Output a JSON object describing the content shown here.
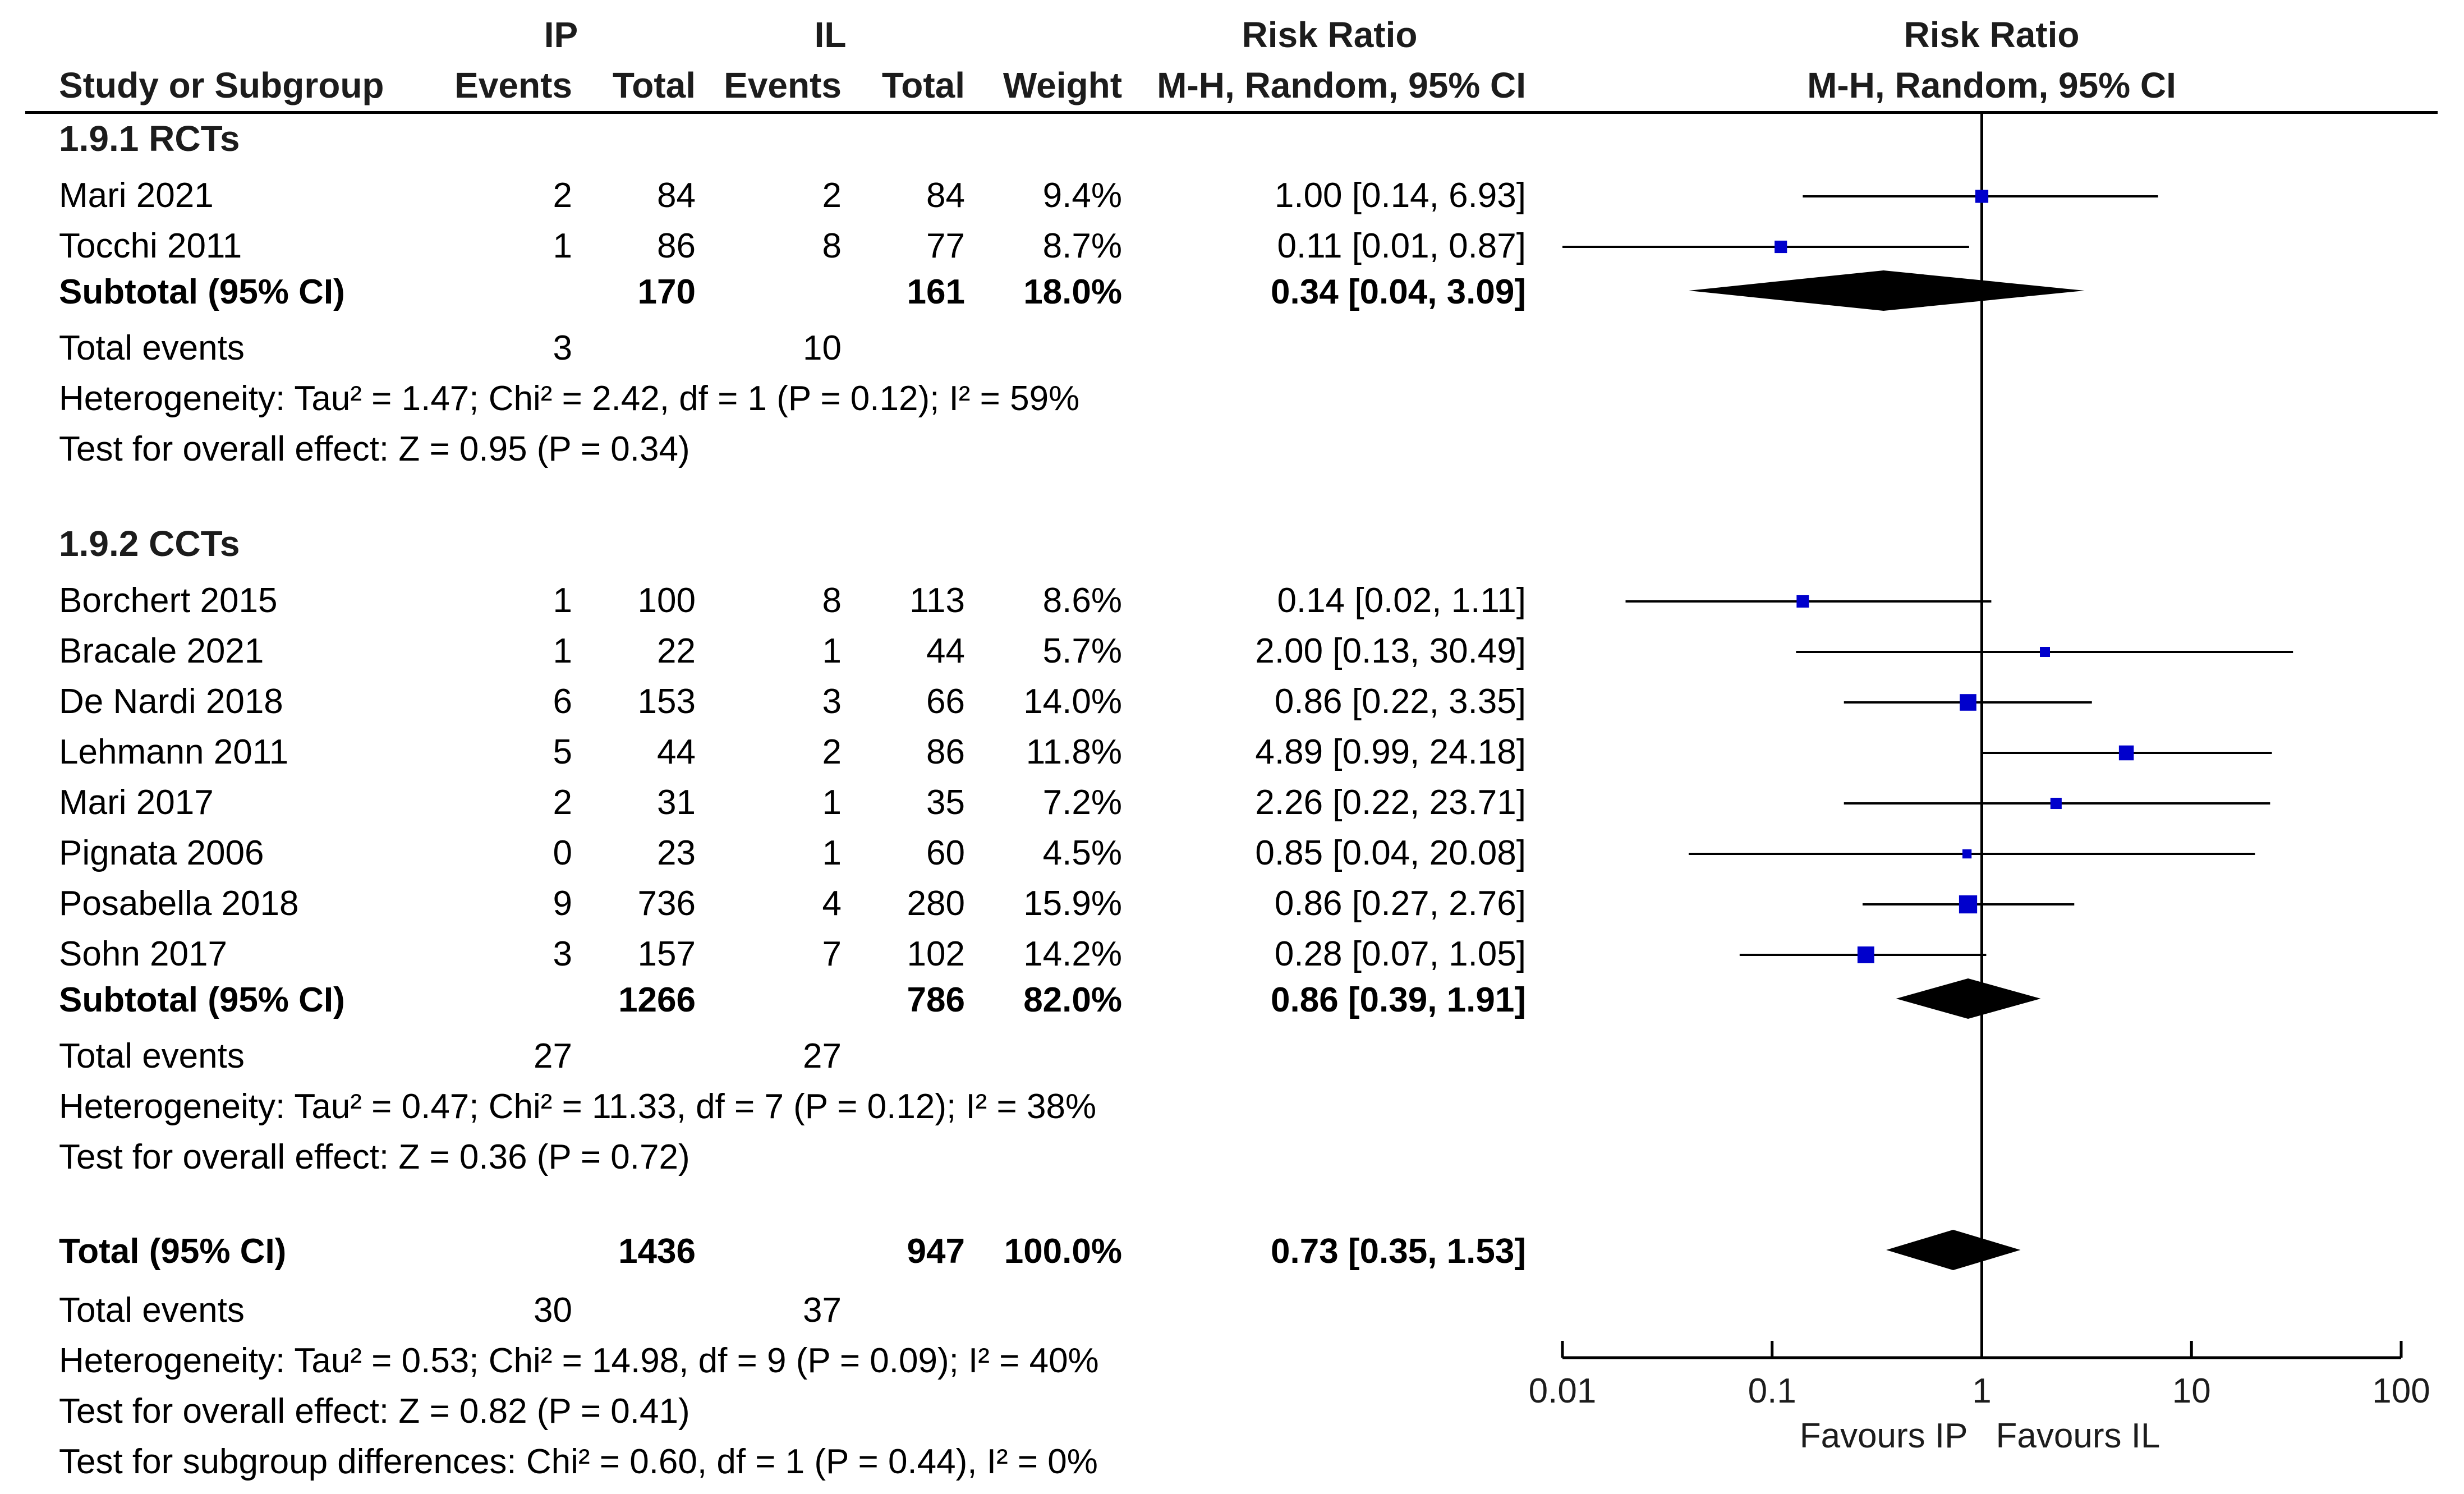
{
  "chart_data": {
    "type": "forest",
    "header": {
      "group1": "IP",
      "group2": "IL",
      "col_study": "Study or Subgroup",
      "col_events": "Events",
      "col_total": "Total",
      "col_weight": "Weight",
      "effect_title": "Risk Ratio",
      "effect_subtitle": "M-H, Random, 95% CI",
      "plot_title": "Risk Ratio",
      "plot_subtitle": "M-H, Random, 95% CI"
    },
    "subgroups": [
      {
        "label": "1.9.1 RCTs",
        "studies": [
          {
            "name": "Mari 2021",
            "e1": "2",
            "n1": "84",
            "e2": "2",
            "n2": "84",
            "weight": "9.4%",
            "ci_text": "1.00 [0.14, 6.93]",
            "rr": 1.0,
            "lo": 0.14,
            "hi": 6.93,
            "w": 9.4
          },
          {
            "name": "Tocchi 2011",
            "e1": "1",
            "n1": "86",
            "e2": "8",
            "n2": "77",
            "weight": "8.7%",
            "ci_text": "0.11 [0.01, 0.87]",
            "rr": 0.11,
            "lo": 0.01,
            "hi": 0.87,
            "w": 8.7
          }
        ],
        "subtotal": {
          "label": "Subtotal (95% CI)",
          "n1": "170",
          "n2": "161",
          "weight": "18.0%",
          "ci_text": "0.34 [0.04, 3.09]",
          "rr": 0.34,
          "lo": 0.04,
          "hi": 3.09
        },
        "total_events": {
          "label": "Total events",
          "e1": "3",
          "e2": "10"
        },
        "heterogeneity": "Heterogeneity: Tau² = 1.47; Chi² = 2.42, df = 1 (P = 0.12); I² = 59%",
        "overall": "Test for overall effect: Z = 0.95 (P = 0.34)"
      },
      {
        "label": "1.9.2 CCTs",
        "studies": [
          {
            "name": "Borchert 2015",
            "e1": "1",
            "n1": "100",
            "e2": "8",
            "n2": "113",
            "weight": "8.6%",
            "ci_text": "0.14 [0.02, 1.11]",
            "rr": 0.14,
            "lo": 0.02,
            "hi": 1.11,
            "w": 8.6
          },
          {
            "name": "Bracale 2021",
            "e1": "1",
            "n1": "22",
            "e2": "1",
            "n2": "44",
            "weight": "5.7%",
            "ci_text": "2.00 [0.13, 30.49]",
            "rr": 2.0,
            "lo": 0.13,
            "hi": 30.49,
            "w": 5.7
          },
          {
            "name": "De Nardi 2018",
            "e1": "6",
            "n1": "153",
            "e2": "3",
            "n2": "66",
            "weight": "14.0%",
            "ci_text": "0.86 [0.22, 3.35]",
            "rr": 0.86,
            "lo": 0.22,
            "hi": 3.35,
            "w": 14.0
          },
          {
            "name": "Lehmann 2011",
            "e1": "5",
            "n1": "44",
            "e2": "2",
            "n2": "86",
            "weight": "11.8%",
            "ci_text": "4.89 [0.99, 24.18]",
            "rr": 4.89,
            "lo": 0.99,
            "hi": 24.18,
            "w": 11.8
          },
          {
            "name": "Mari 2017",
            "e1": "2",
            "n1": "31",
            "e2": "1",
            "n2": "35",
            "weight": "7.2%",
            "ci_text": "2.26 [0.22, 23.71]",
            "rr": 2.26,
            "lo": 0.22,
            "hi": 23.71,
            "w": 7.2
          },
          {
            "name": "Pignata 2006",
            "e1": "0",
            "n1": "23",
            "e2": "1",
            "n2": "60",
            "weight": "4.5%",
            "ci_text": "0.85 [0.04, 20.08]",
            "rr": 0.85,
            "lo": 0.04,
            "hi": 20.08,
            "w": 4.5
          },
          {
            "name": "Posabella 2018",
            "e1": "9",
            "n1": "736",
            "e2": "4",
            "n2": "280",
            "weight": "15.9%",
            "ci_text": "0.86 [0.27, 2.76]",
            "rr": 0.86,
            "lo": 0.27,
            "hi": 2.76,
            "w": 15.9
          },
          {
            "name": "Sohn 2017",
            "e1": "3",
            "n1": "157",
            "e2": "7",
            "n2": "102",
            "weight": "14.2%",
            "ci_text": "0.28 [0.07, 1.05]",
            "rr": 0.28,
            "lo": 0.07,
            "hi": 1.05,
            "w": 14.2
          }
        ],
        "subtotal": {
          "label": "Subtotal (95% CI)",
          "n1": "1266",
          "n2": "786",
          "weight": "82.0%",
          "ci_text": "0.86 [0.39, 1.91]",
          "rr": 0.86,
          "lo": 0.39,
          "hi": 1.91
        },
        "total_events": {
          "label": "Total events",
          "e1": "27",
          "e2": "27"
        },
        "heterogeneity": "Heterogeneity: Tau² = 0.47; Chi² = 11.33, df = 7 (P = 0.12); I² = 38%",
        "overall": "Test for overall effect: Z = 0.36 (P = 0.72)"
      }
    ],
    "total": {
      "label": "Total (95% CI)",
      "n1": "1436",
      "n2": "947",
      "weight": "100.0%",
      "ci_text": "0.73 [0.35, 1.53]",
      "rr": 0.73,
      "lo": 0.35,
      "hi": 1.53
    },
    "total_events": {
      "label": "Total events",
      "e1": "30",
      "e2": "37"
    },
    "heterogeneity": "Heterogeneity: Tau² = 0.53; Chi² = 14.98, df = 9 (P = 0.09); I² = 40%",
    "overall": "Test for overall effect: Z = 0.82 (P = 0.41)",
    "subgroup_diff": "Test for subgroup differences: Chi² = 0.60, df = 1 (P = 0.44), I² = 0%",
    "x_axis": {
      "scale": "log",
      "range": [
        0.01,
        100
      ],
      "ticks": [
        0.01,
        0.1,
        1,
        10,
        100
      ],
      "tick_labels": [
        "0.01",
        "0.1",
        "1",
        "10",
        "100"
      ],
      "favours_left": "Favours IP",
      "favours_right": "Favours IL"
    },
    "colors": {
      "marker": "#0000cc",
      "diamond": "#000000",
      "line": "#000000"
    }
  }
}
